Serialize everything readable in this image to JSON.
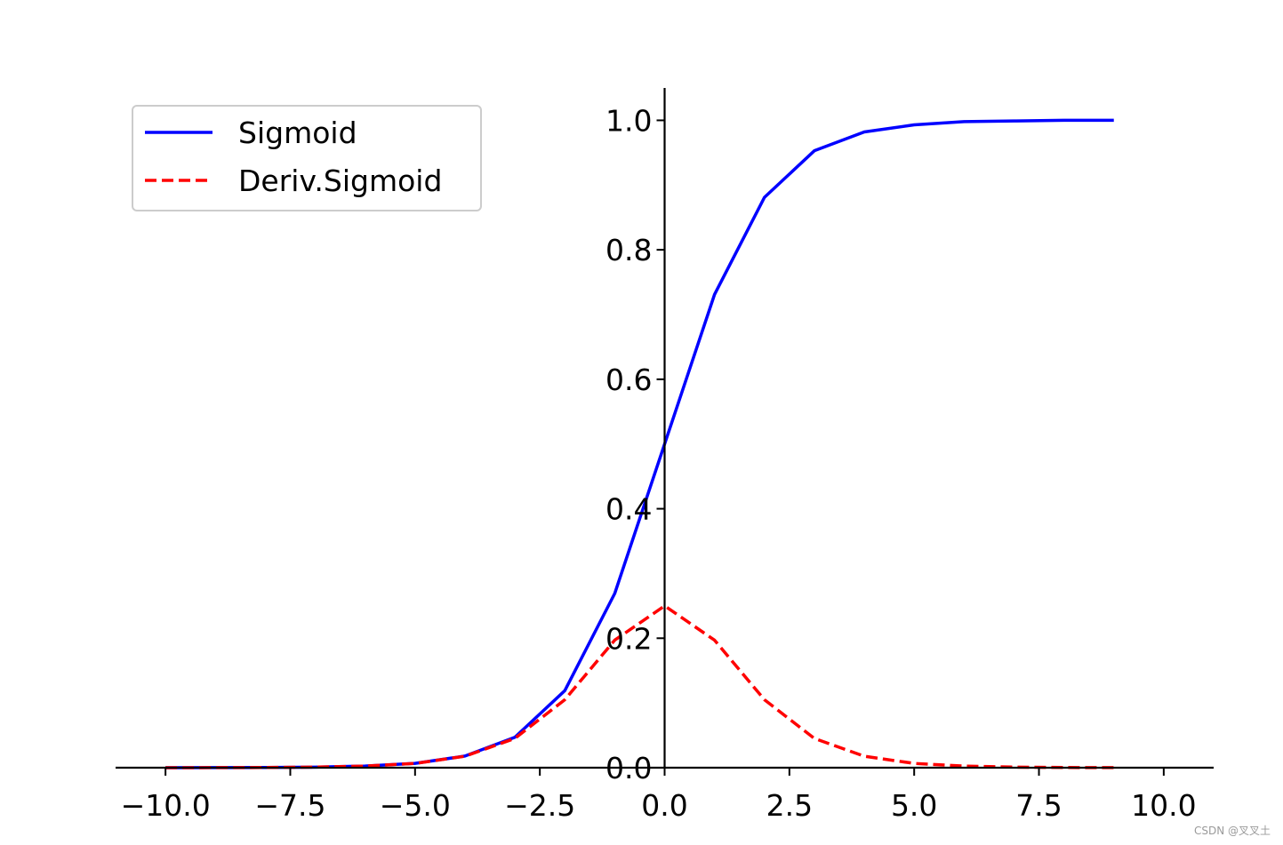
{
  "chart_data": {
    "type": "line",
    "x": [
      -10,
      -9,
      -8,
      -7,
      -6,
      -5,
      -4,
      -3,
      -2,
      -1,
      0,
      1,
      2,
      3,
      4,
      5,
      6,
      7,
      8,
      9
    ],
    "series": [
      {
        "name": "Sigmoid",
        "color": "#0000ff",
        "style": "solid",
        "values": [
          5e-05,
          0.0001,
          0.0003,
          0.0009,
          0.0025,
          0.0067,
          0.018,
          0.047,
          0.119,
          0.269,
          0.5,
          0.731,
          0.881,
          0.953,
          0.982,
          0.993,
          0.998,
          0.999,
          1.0,
          1.0
        ]
      },
      {
        "name": "Deriv.Sigmoid",
        "color": "#ff0000",
        "style": "dashed",
        "values": [
          5e-05,
          0.0001,
          0.0003,
          0.0009,
          0.0025,
          0.0066,
          0.0177,
          0.0452,
          0.105,
          0.197,
          0.25,
          0.197,
          0.105,
          0.0452,
          0.0177,
          0.0066,
          0.0025,
          0.0009,
          0.0003,
          0.0001
        ]
      }
    ],
    "xlim": [
      -11,
      11
    ],
    "ylim": [
      0,
      1.05
    ],
    "xticks": [
      -10,
      -7.5,
      -5,
      -2.5,
      0,
      2.5,
      5,
      7.5,
      10
    ],
    "xtick_labels": [
      "−10.0",
      "−7.5",
      "−5.0",
      "−2.5",
      "0.0",
      "2.5",
      "5.0",
      "7.5",
      "10.0"
    ],
    "yticks": [
      0,
      0.2,
      0.4,
      0.6,
      0.8,
      1.0
    ],
    "ytick_labels": [
      "0.0",
      "0.2",
      "0.4",
      "0.6",
      "0.8",
      "1.0"
    ],
    "spines": "centered at origin",
    "grid": false,
    "legend_position": "top-left",
    "title": "",
    "xlabel": "",
    "ylabel": ""
  },
  "watermark": "CSDN @叉叉土"
}
